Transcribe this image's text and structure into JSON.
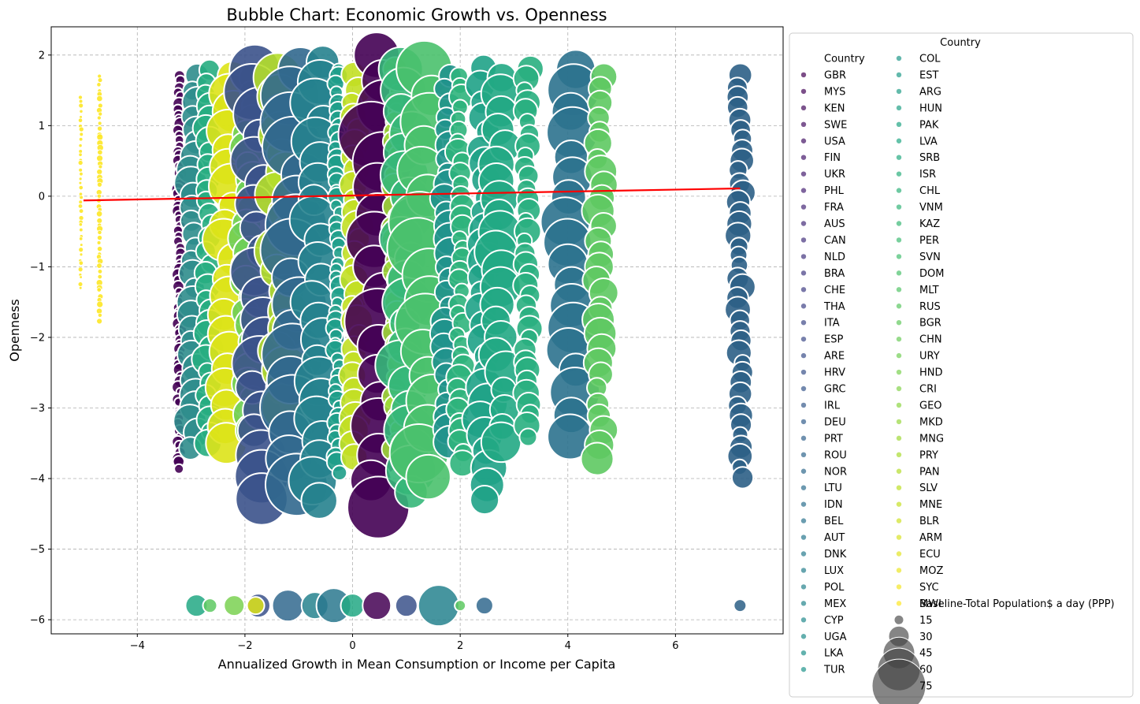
{
  "chart_data": {
    "type": "scatter",
    "title": "Bubble Chart: Economic Growth vs. Openness",
    "xlabel": "Annualized Growth in Mean Consumption or Income per Capita",
    "ylabel": "Openness",
    "xlim": [
      -5.6,
      8.0
    ],
    "ylim": [
      -6.2,
      2.4
    ],
    "x_ticks": [
      -4,
      -2,
      0,
      2,
      4,
      6
    ],
    "y_ticks": [
      2,
      1,
      0,
      -1,
      -2,
      -3,
      -4,
      -5,
      -6
    ],
    "x_tick_labels": [
      "−4",
      "−2",
      "0",
      "2",
      "4",
      "6"
    ],
    "y_tick_labels": [
      "2",
      "1",
      "0",
      "−1",
      "−2",
      "−3",
      "−4",
      "−5",
      "−6"
    ],
    "grid": true,
    "trend_line": {
      "color": "#ff0000",
      "x": [
        -5.0,
        7.2
      ],
      "y": [
        -0.06,
        0.11
      ]
    },
    "legend": {
      "placement": "outside right",
      "title": "Country",
      "hue_title": "Country",
      "size_title": "Baseline-Total Population$ a day (PPP)",
      "countries": [
        "GBR",
        "MYS",
        "KEN",
        "SWE",
        "USA",
        "FIN",
        "UKR",
        "PHL",
        "FRA",
        "AUS",
        "CAN",
        "NLD",
        "BRA",
        "CHE",
        "THA",
        "ITA",
        "ESP",
        "ARE",
        "HRV",
        "GRC",
        "IRL",
        "DEU",
        "PRT",
        "ROU",
        "NOR",
        "LTU",
        "IDN",
        "BEL",
        "AUT",
        "DNK",
        "LUX",
        "POL",
        "MEX",
        "CYP",
        "UGA",
        "LKA",
        "TUR",
        "COL",
        "EST",
        "ARG",
        "HUN",
        "PAK",
        "LVA",
        "SRB",
        "ISR",
        "CHL",
        "VNM",
        "KAZ",
        "PER",
        "SVN",
        "DOM",
        "MLT",
        "RUS",
        "BGR",
        "CHN",
        "URY",
        "HND",
        "CRI",
        "GEO",
        "MKD",
        "MNG",
        "PRY",
        "PAN",
        "SLV",
        "MNE",
        "BLR",
        "ARM",
        "ECU",
        "MOZ",
        "SYC",
        "MWI"
      ],
      "size_values": [
        15,
        30,
        45,
        60,
        75
      ],
      "size_labels": [
        "15",
        "30",
        "45",
        "60",
        "75"
      ]
    },
    "columns": [
      {
        "x": -5.05,
        "ymin": -1.3,
        "ymax": 1.4,
        "color": "#fde725",
        "size": 3
      },
      {
        "x": -4.7,
        "ymin": -1.75,
        "ymax": 1.7,
        "color": "#fde725",
        "size": 4
      },
      {
        "x": -3.22,
        "ymin": -3.85,
        "ymax": 1.7,
        "color": "#440154",
        "size": 8
      },
      {
        "x": -2.95,
        "ymin": -3.55,
        "ymax": 1.7,
        "color": "#2f8d8c",
        "size": 20
      },
      {
        "x": -2.68,
        "ymin": -3.5,
        "ymax": 1.8,
        "color": "#27ad81",
        "size": 18
      },
      {
        "x": -2.3,
        "ymin": -3.5,
        "ymax": 1.7,
        "color": "#dde318",
        "size": 28
      },
      {
        "x": -1.92,
        "ymin": -3.3,
        "ymax": 1.7,
        "color": "#6ece58",
        "size": 22
      },
      {
        "x": -1.75,
        "ymin": -4.3,
        "ymax": 1.8,
        "color": "#3b528b",
        "size": 34
      },
      {
        "x": -1.3,
        "ymin": -3.0,
        "ymax": 1.7,
        "color": "#b5de2b",
        "size": 30
      },
      {
        "x": -1.05,
        "ymin": -4.1,
        "ymax": 1.8,
        "color": "#31688e",
        "size": 40
      },
      {
        "x": -0.65,
        "ymin": -4.3,
        "ymax": 1.9,
        "color": "#26828e",
        "size": 30
      },
      {
        "x": -0.28,
        "ymin": -3.9,
        "ymax": 1.8,
        "color": "#1f9e89",
        "size": 12
      },
      {
        "x": 0.05,
        "ymin": -3.7,
        "ymax": 1.7,
        "color": "#c2df23",
        "size": 20
      },
      {
        "x": 0.45,
        "ymin": -4.4,
        "ymax": 2.0,
        "color": "#440154",
        "size": 40
      },
      {
        "x": 0.8,
        "ymin": -3.6,
        "ymax": 1.8,
        "color": "#a0da39",
        "size": 16
      },
      {
        "x": 1.0,
        "ymin": -4.2,
        "ymax": 1.8,
        "color": "#35b779",
        "size": 32
      },
      {
        "x": 1.35,
        "ymin": -4.0,
        "ymax": 1.8,
        "color": "#4ac16d",
        "size": 38
      },
      {
        "x": 1.75,
        "ymin": -3.5,
        "ymax": 1.7,
        "color": "#20928c",
        "size": 20
      },
      {
        "x": 2.0,
        "ymin": -3.8,
        "ymax": 1.7,
        "color": "#2fb47c",
        "size": 16
      },
      {
        "x": 2.45,
        "ymin": -4.3,
        "ymax": 1.8,
        "color": "#1fa287",
        "size": 24
      },
      {
        "x": 2.75,
        "ymin": -3.5,
        "ymax": 1.7,
        "color": "#22a884",
        "size": 26
      },
      {
        "x": 3.25,
        "ymin": -3.4,
        "ymax": 1.8,
        "color": "#29af7f",
        "size": 16
      },
      {
        "x": 4.05,
        "ymin": -3.4,
        "ymax": 1.8,
        "color": "#2c728e",
        "size": 32
      },
      {
        "x": 4.6,
        "ymin": -3.7,
        "ymax": 1.7,
        "color": "#5ec962",
        "size": 20
      },
      {
        "x": 7.2,
        "ymin": -4.0,
        "ymax": 1.7,
        "color": "#2c5f86",
        "size": 16
      }
    ],
    "bottom_row": [
      {
        "x": -2.9,
        "y": -5.8,
        "color": "#22a884",
        "size": 28
      },
      {
        "x": -2.65,
        "y": -5.8,
        "color": "#5ec962",
        "size": 18
      },
      {
        "x": -2.2,
        "y": -5.8,
        "color": "#7ad151",
        "size": 26
      },
      {
        "x": -1.75,
        "y": -5.8,
        "color": "#3b528b",
        "size": 30
      },
      {
        "x": -1.8,
        "y": -5.8,
        "color": "#dde318",
        "size": 22
      },
      {
        "x": -1.2,
        "y": -5.8,
        "color": "#31688e",
        "size": 40
      },
      {
        "x": -0.7,
        "y": -5.8,
        "color": "#26828e",
        "size": 34
      },
      {
        "x": -0.35,
        "y": -5.8,
        "color": "#2a788e",
        "size": 44
      },
      {
        "x": 0.0,
        "y": -5.8,
        "color": "#22a884",
        "size": 30
      },
      {
        "x": 0.45,
        "y": -5.8,
        "color": "#440154",
        "size": 36
      },
      {
        "x": 1.0,
        "y": -5.8,
        "color": "#3b528b",
        "size": 28
      },
      {
        "x": 1.6,
        "y": -5.8,
        "color": "#26828e",
        "size": 52
      },
      {
        "x": 2.0,
        "y": -5.8,
        "color": "#5ec962",
        "size": 14
      },
      {
        "x": 2.45,
        "y": -5.8,
        "color": "#31688e",
        "size": 22
      },
      {
        "x": 7.2,
        "y": -5.8,
        "color": "#2c5f86",
        "size": 16
      }
    ]
  }
}
